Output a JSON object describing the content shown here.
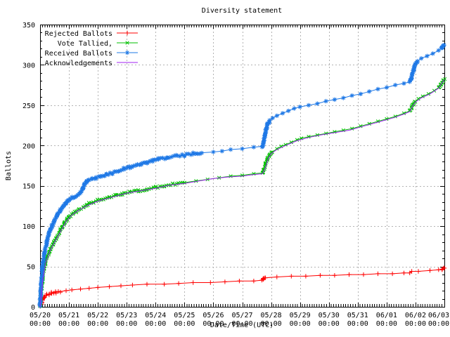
{
  "title": "Diversity statement",
  "colors": {
    "grid": "#b3b3b3",
    "axis": "#000000",
    "background": "#ffffff"
  },
  "chart_data": {
    "type": "line",
    "title": "Diversity statement",
    "xlabel": "Date/Time (UTC)",
    "ylabel": "Ballots",
    "ylim": [
      0,
      350
    ],
    "y_ticks": [
      0,
      50,
      100,
      150,
      200,
      250,
      300,
      350
    ],
    "y_minor_step": 10,
    "x_range_days": 14,
    "grid": true,
    "legend_position": "top-left",
    "x_tick_labels": [
      {
        "date": "05/20",
        "time": "00:00"
      },
      {
        "date": "05/21",
        "time": "00:00"
      },
      {
        "date": "05/22",
        "time": "00:00"
      },
      {
        "date": "05/23",
        "time": "00:00"
      },
      {
        "date": "05/24",
        "time": "00:00"
      },
      {
        "date": "05/25",
        "time": "00:00"
      },
      {
        "date": "05/26",
        "time": "00:00"
      },
      {
        "date": "05/27",
        "time": "00:00"
      },
      {
        "date": "05/28",
        "time": "00:00"
      },
      {
        "date": "05/29",
        "time": "00:00"
      },
      {
        "date": "05/30",
        "time": "00:00"
      },
      {
        "date": "05/31",
        "time": "00:00"
      },
      {
        "date": "06/01",
        "time": "00:00"
      },
      {
        "date": "06/02",
        "time": "00:00"
      },
      {
        "date": "06/03",
        "time": "00:00"
      }
    ],
    "series": [
      {
        "name": "Rejected Ballots",
        "color": "#ff0000",
        "marker": "plus",
        "dense_until": 0.7,
        "points": [
          [
            0,
            0
          ],
          [
            0.04,
            4
          ],
          [
            0.08,
            8
          ],
          [
            0.12,
            11
          ],
          [
            0.16,
            13
          ],
          [
            0.22,
            15
          ],
          [
            0.3,
            16
          ],
          [
            0.4,
            17
          ],
          [
            0.55,
            18
          ],
          [
            0.7,
            19
          ],
          [
            0.9,
            20
          ],
          [
            1.1,
            21
          ],
          [
            1.4,
            22
          ],
          [
            1.7,
            23
          ],
          [
            2.0,
            24
          ],
          [
            2.4,
            25
          ],
          [
            2.8,
            26
          ],
          [
            3.2,
            27
          ],
          [
            3.7,
            28
          ],
          [
            4.3,
            28
          ],
          [
            4.8,
            29
          ],
          [
            5.3,
            30
          ],
          [
            5.9,
            30
          ],
          [
            6.4,
            31
          ],
          [
            6.9,
            32
          ],
          [
            7.4,
            32
          ],
          [
            7.68,
            33
          ],
          [
            7.72,
            34
          ],
          [
            7.76,
            36
          ],
          [
            7.8,
            36
          ],
          [
            8.2,
            37
          ],
          [
            8.7,
            38
          ],
          [
            9.2,
            38
          ],
          [
            9.7,
            39
          ],
          [
            10.2,
            39
          ],
          [
            10.7,
            40
          ],
          [
            11.2,
            40
          ],
          [
            11.7,
            41
          ],
          [
            12.2,
            41
          ],
          [
            12.6,
            42
          ],
          [
            12.8,
            42
          ],
          [
            12.87,
            44
          ],
          [
            13.1,
            44
          ],
          [
            13.5,
            45
          ],
          [
            13.8,
            46
          ],
          [
            13.92,
            46
          ],
          [
            13.96,
            48
          ],
          [
            14,
            48
          ]
        ]
      },
      {
        "name": "Vote Tallied,",
        "color": "#00bf00",
        "marker": "cross",
        "dense_until": 5.0,
        "points": [
          [
            0,
            0
          ],
          [
            0.03,
            12
          ],
          [
            0.06,
            26
          ],
          [
            0.1,
            38
          ],
          [
            0.14,
            47
          ],
          [
            0.18,
            54
          ],
          [
            0.24,
            61
          ],
          [
            0.3,
            67
          ],
          [
            0.37,
            72
          ],
          [
            0.45,
            78
          ],
          [
            0.55,
            84
          ],
          [
            0.65,
            91
          ],
          [
            0.75,
            98
          ],
          [
            0.85,
            104
          ],
          [
            0.95,
            109
          ],
          [
            1.05,
            113
          ],
          [
            1.15,
            116
          ],
          [
            1.25,
            118
          ],
          [
            1.35,
            120
          ],
          [
            1.5,
            123
          ],
          [
            1.6,
            126
          ],
          [
            1.7,
            128
          ],
          [
            1.85,
            130
          ],
          [
            2.0,
            132
          ],
          [
            2.2,
            134
          ],
          [
            2.4,
            136
          ],
          [
            2.6,
            138
          ],
          [
            2.85,
            140
          ],
          [
            3.1,
            142
          ],
          [
            3.4,
            144
          ],
          [
            3.7,
            146
          ],
          [
            4.0,
            148
          ],
          [
            4.3,
            150
          ],
          [
            4.6,
            152
          ],
          [
            5.0,
            154
          ],
          [
            5.4,
            156
          ],
          [
            5.8,
            158
          ],
          [
            6.2,
            160
          ],
          [
            6.6,
            162
          ],
          [
            7.0,
            163
          ],
          [
            7.4,
            165
          ],
          [
            7.7,
            166
          ],
          [
            7.74,
            169
          ],
          [
            7.78,
            174
          ],
          [
            7.82,
            179
          ],
          [
            7.88,
            184
          ],
          [
            7.95,
            188
          ],
          [
            8.05,
            192
          ],
          [
            8.2,
            196
          ],
          [
            8.35,
            199
          ],
          [
            8.5,
            201
          ],
          [
            8.7,
            204
          ],
          [
            8.9,
            207
          ],
          [
            9.05,
            209
          ],
          [
            9.3,
            211
          ],
          [
            9.6,
            213
          ],
          [
            9.9,
            215
          ],
          [
            10.2,
            217
          ],
          [
            10.5,
            219
          ],
          [
            10.8,
            221
          ],
          [
            11.1,
            224
          ],
          [
            11.4,
            227
          ],
          [
            11.7,
            230
          ],
          [
            12.0,
            233
          ],
          [
            12.3,
            236
          ],
          [
            12.6,
            240
          ],
          [
            12.8,
            243
          ],
          [
            12.86,
            246
          ],
          [
            12.92,
            251
          ],
          [
            13.0,
            255
          ],
          [
            13.1,
            258
          ],
          [
            13.25,
            261
          ],
          [
            13.45,
            264
          ],
          [
            13.65,
            268
          ],
          [
            13.8,
            272
          ],
          [
            13.9,
            276
          ],
          [
            14,
            283
          ]
        ]
      },
      {
        "name": "Received Ballots",
        "color": "#1e78e6",
        "marker": "asterisk",
        "dense_until": 5.4,
        "points": [
          [
            0,
            0
          ],
          [
            0.02,
            14
          ],
          [
            0.05,
            32
          ],
          [
            0.08,
            47
          ],
          [
            0.11,
            57
          ],
          [
            0.15,
            66
          ],
          [
            0.2,
            75
          ],
          [
            0.25,
            83
          ],
          [
            0.3,
            90
          ],
          [
            0.36,
            96
          ],
          [
            0.42,
            101
          ],
          [
            0.5,
            107
          ],
          [
            0.6,
            114
          ],
          [
            0.7,
            120
          ],
          [
            0.8,
            125
          ],
          [
            0.9,
            129
          ],
          [
            1.0,
            133
          ],
          [
            1.1,
            135
          ],
          [
            1.2,
            137
          ],
          [
            1.3,
            139
          ],
          [
            1.4,
            142
          ],
          [
            1.48,
            146
          ],
          [
            1.55,
            152
          ],
          [
            1.62,
            156
          ],
          [
            1.7,
            158
          ],
          [
            1.8,
            159
          ],
          [
            1.95,
            160
          ],
          [
            2.1,
            162
          ],
          [
            2.3,
            164
          ],
          [
            2.5,
            166
          ],
          [
            2.7,
            169
          ],
          [
            2.9,
            171
          ],
          [
            3.1,
            173
          ],
          [
            3.3,
            175
          ],
          [
            3.5,
            177
          ],
          [
            3.7,
            179
          ],
          [
            3.9,
            181
          ],
          [
            4.1,
            183
          ],
          [
            4.4,
            185
          ],
          [
            4.7,
            187
          ],
          [
            5.0,
            188
          ],
          [
            5.3,
            190
          ],
          [
            5.6,
            191
          ],
          [
            6.0,
            192
          ],
          [
            6.3,
            193
          ],
          [
            6.6,
            195
          ],
          [
            7.0,
            196
          ],
          [
            7.4,
            198
          ],
          [
            7.7,
            199
          ],
          [
            7.74,
            204
          ],
          [
            7.78,
            212
          ],
          [
            7.82,
            219
          ],
          [
            7.88,
            226
          ],
          [
            7.95,
            231
          ],
          [
            8.05,
            234
          ],
          [
            8.2,
            237
          ],
          [
            8.4,
            240
          ],
          [
            8.6,
            243
          ],
          [
            8.8,
            246
          ],
          [
            9.0,
            248
          ],
          [
            9.3,
            250
          ],
          [
            9.6,
            252
          ],
          [
            9.9,
            255
          ],
          [
            10.2,
            257
          ],
          [
            10.5,
            259
          ],
          [
            10.8,
            262
          ],
          [
            11.1,
            264
          ],
          [
            11.4,
            267
          ],
          [
            11.7,
            270
          ],
          [
            12.0,
            272
          ],
          [
            12.3,
            275
          ],
          [
            12.6,
            277
          ],
          [
            12.8,
            279
          ],
          [
            12.86,
            284
          ],
          [
            12.92,
            293
          ],
          [
            13.0,
            301
          ],
          [
            13.08,
            305
          ],
          [
            13.2,
            308
          ],
          [
            13.4,
            311
          ],
          [
            13.6,
            314
          ],
          [
            13.8,
            318
          ],
          [
            13.9,
            321
          ],
          [
            14,
            325
          ]
        ]
      },
      {
        "name": "Acknowledgements",
        "color": "#a020f0",
        "marker": "none",
        "dense_until": 0,
        "points": [
          [
            0,
            0
          ],
          [
            0.1,
            35
          ],
          [
            0.2,
            55
          ],
          [
            0.35,
            70
          ],
          [
            0.5,
            80
          ],
          [
            0.7,
            93
          ],
          [
            0.9,
            106
          ],
          [
            1.1,
            114
          ],
          [
            1.3,
            119
          ],
          [
            1.6,
            125
          ],
          [
            2.0,
            131
          ],
          [
            2.5,
            136
          ],
          [
            3.0,
            141
          ],
          [
            3.5,
            144
          ],
          [
            4.0,
            147
          ],
          [
            4.5,
            151
          ],
          [
            5.0,
            153
          ],
          [
            5.5,
            156
          ],
          [
            6.0,
            159
          ],
          [
            6.5,
            161
          ],
          [
            7.0,
            162
          ],
          [
            7.4,
            164
          ],
          [
            7.7,
            165
          ],
          [
            7.8,
            172
          ],
          [
            7.9,
            184
          ],
          [
            8.0,
            190
          ],
          [
            8.2,
            195
          ],
          [
            8.5,
            200
          ],
          [
            8.9,
            206
          ],
          [
            9.3,
            210
          ],
          [
            9.7,
            213
          ],
          [
            10.2,
            216
          ],
          [
            10.7,
            219
          ],
          [
            11.2,
            224
          ],
          [
            11.7,
            229
          ],
          [
            12.2,
            234
          ],
          [
            12.6,
            239
          ],
          [
            12.8,
            242
          ],
          [
            12.9,
            249
          ],
          [
            13.0,
            254
          ],
          [
            13.2,
            259
          ],
          [
            13.5,
            264
          ],
          [
            13.8,
            271
          ],
          [
            14,
            282
          ]
        ]
      }
    ]
  }
}
